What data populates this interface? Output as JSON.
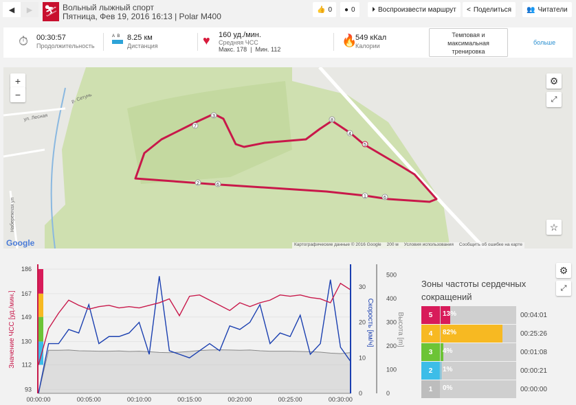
{
  "header": {
    "title": "Вольный лыжный спорт",
    "subtitle": "Пятница, Фев 19, 2016 16:13 | Polar M400",
    "likes": "0",
    "comments": "0",
    "play_label": "Воспроизвести маршрут",
    "share_label": "Поделиться",
    "readers_label": "Читатели"
  },
  "stats": {
    "duration": "00:30:57",
    "duration_label": "Продолжительность",
    "distance": "8.25 км",
    "distance_label": "Дистанция",
    "ab_a": "A",
    "ab_b": "B",
    "hr": "160 уд./мин.",
    "hr_label": "Средняя ЧСС",
    "hr_minmax": "Макс. 178  |  Мин. 112",
    "calories": "549 кКал",
    "calories_label": "Калории",
    "training_label": "Темповая и максимальная тренировка",
    "more_label": "больше"
  },
  "map": {
    "zoom_in": "+",
    "zoom_out": "−",
    "google": "Google",
    "footer": [
      "Картографические данные © 2016 Google",
      "200 м",
      "Условия использования",
      "Сообщить об ошибке на карте"
    ],
    "labels": [
      "р. Сетунь",
      "ул. Лесная",
      "Набережная ул"
    ],
    "markers": [
      "1",
      "2",
      "3",
      "4",
      "5",
      "6",
      "7",
      "8"
    ]
  },
  "chart_data": {
    "type": "line",
    "xlabel": "",
    "x_ticks": [
      "00:00:00",
      "00:05:00",
      "00:10:00",
      "00:15:00",
      "00:20:00",
      "00:25:00",
      "00:30:00"
    ],
    "y_left": {
      "label": "Значение ЧСС [уд./мин.]",
      "ticks": [
        "186",
        "167",
        "149",
        "130",
        "112",
        "93"
      ],
      "range": [
        90,
        186
      ]
    },
    "y_speed": {
      "label": "Скорость [км/ч]",
      "ticks": [
        "30",
        "20",
        "10",
        "0"
      ],
      "range": [
        0,
        30
      ]
    },
    "y_alt": {
      "label": "Высота [m]",
      "ticks": [
        "500",
        "400",
        "300",
        "200",
        "100",
        "0"
      ],
      "range": [
        0,
        500
      ]
    },
    "minutes": [
      0,
      1,
      2,
      3,
      4,
      5,
      6,
      7,
      8,
      9,
      10,
      11,
      12,
      13,
      14,
      15,
      16,
      17,
      18,
      19,
      20,
      21,
      22,
      23,
      24,
      25,
      26,
      27,
      28,
      29,
      30,
      31
    ],
    "series": [
      {
        "name": "ЧСС",
        "color": "#c8184a",
        "values": [
          112,
          140,
          152,
          162,
          158,
          155,
          157,
          158,
          156,
          157,
          156,
          158,
          160,
          163,
          150,
          165,
          166,
          162,
          158,
          154,
          160,
          157,
          160,
          162,
          166,
          165,
          166,
          164,
          163,
          160,
          175,
          170
        ]
      },
      {
        "name": "Скорость",
        "color": "#1a3fb0",
        "values": [
          0,
          14,
          14,
          18,
          17,
          25,
          14,
          16,
          16,
          17,
          20,
          11,
          33,
          12,
          11,
          10,
          12,
          14,
          12,
          19,
          18,
          20,
          25,
          14,
          17,
          16,
          22,
          11,
          14,
          32,
          13,
          9
        ]
      },
      {
        "name": "Высота",
        "color": "#888888",
        "values": [
          0,
          182,
          182,
          183,
          180,
          179,
          178,
          178,
          179,
          177,
          178,
          176,
          173,
          172,
          174,
          177,
          181,
          183,
          184,
          183,
          182,
          183,
          180,
          178,
          178,
          178,
          177,
          176,
          174,
          170,
          168,
          172
        ]
      }
    ]
  },
  "zones": {
    "title": "Зоны частоты сердечных сокращений",
    "items": [
      {
        "n": "5",
        "pct": "13%",
        "frac": 0.13,
        "time": "00:04:01",
        "color": "#d81b5a"
      },
      {
        "n": "4",
        "pct": "82%",
        "frac": 0.82,
        "time": "00:25:26",
        "color": "#f7b922"
      },
      {
        "n": "3",
        "pct": "4%",
        "frac": 0.04,
        "time": "00:01:08",
        "color": "#6cc436"
      },
      {
        "n": "2",
        "pct": "1%",
        "frac": 0.01,
        "time": "00:00:21",
        "color": "#3dbde8"
      },
      {
        "n": "1",
        "pct": "0%",
        "frac": 0,
        "time": "00:00:00",
        "color": "#bdbdbd"
      }
    ]
  }
}
